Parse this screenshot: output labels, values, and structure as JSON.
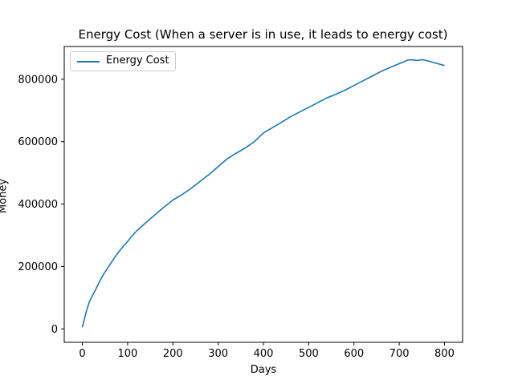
{
  "chart_data": {
    "type": "line",
    "title": "Energy Cost (When a server is in use, it leads to energy cost)",
    "xlabel": "Days",
    "ylabel": "Money",
    "xlim": [
      -40,
      840
    ],
    "ylim": [
      -43000,
      905000
    ],
    "xticks": [
      0,
      100,
      200,
      300,
      400,
      500,
      600,
      700,
      800
    ],
    "yticks": [
      0,
      200000,
      400000,
      600000,
      800000
    ],
    "xtick_labels": [
      "0",
      "100",
      "200",
      "300",
      "400",
      "500",
      "600",
      "700",
      "800"
    ],
    "ytick_labels": [
      "0",
      "200000",
      "400000",
      "600000",
      "800000"
    ],
    "grid": false,
    "legend_position": "upper-left",
    "series": [
      {
        "name": "Energy Cost",
        "color": "#1f77b4",
        "x": [
          0,
          5,
          10,
          15,
          20,
          30,
          40,
          50,
          60,
          70,
          80,
          90,
          100,
          110,
          120,
          140,
          160,
          180,
          200,
          220,
          240,
          260,
          280,
          300,
          320,
          340,
          360,
          380,
          400,
          420,
          440,
          460,
          480,
          500,
          520,
          540,
          560,
          580,
          600,
          620,
          640,
          660,
          680,
          700,
          710,
          720,
          730,
          740,
          750,
          760,
          780,
          800
        ],
        "y": [
          5000,
          35000,
          62000,
          85000,
          100000,
          128000,
          158000,
          182000,
          204000,
          226000,
          246000,
          264000,
          280000,
          298000,
          314000,
          340000,
          365000,
          390000,
          413000,
          430000,
          450000,
          473000,
          495000,
          520000,
          545000,
          563000,
          580000,
          600000,
          628000,
          645000,
          662000,
          680000,
          695000,
          710000,
          725000,
          740000,
          752000,
          765000,
          780000,
          795000,
          810000,
          825000,
          838000,
          850000,
          856000,
          862000,
          862000,
          860000,
          863000,
          860000,
          852000,
          844000
        ]
      }
    ]
  }
}
